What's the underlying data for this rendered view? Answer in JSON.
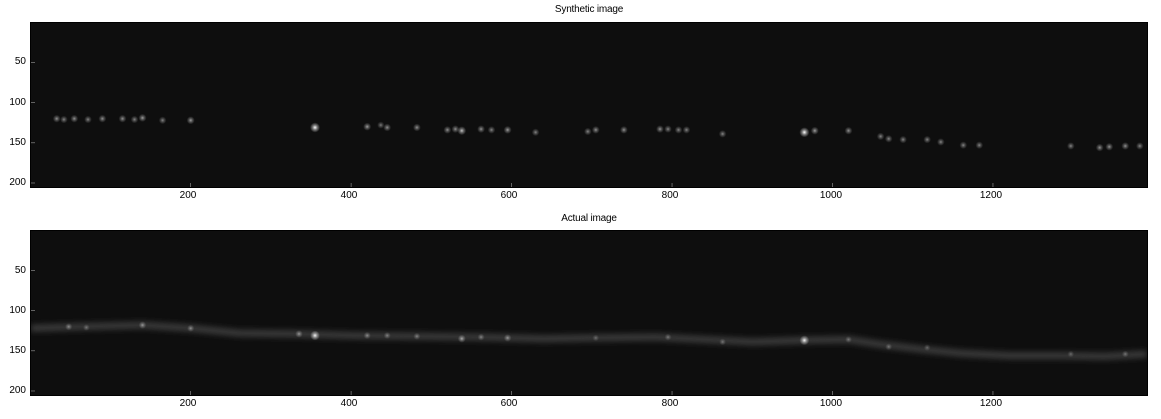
{
  "panels": [
    {
      "title": "Synthetic image",
      "xticks": [
        "200",
        "400",
        "600",
        "800",
        "1000",
        "1200"
      ],
      "yticks": [
        "50",
        "100",
        "150",
        "200"
      ],
      "x_range": [
        1,
        1392
      ],
      "y_range": [
        1,
        205
      ],
      "ridge": false,
      "spots": [
        [
          33,
          120,
          0.55
        ],
        [
          42,
          121,
          0.5
        ],
        [
          55,
          120,
          0.55
        ],
        [
          72,
          121,
          0.5
        ],
        [
          90,
          120,
          0.55
        ],
        [
          115,
          120,
          0.55
        ],
        [
          130,
          121,
          0.5
        ],
        [
          140,
          119,
          0.6
        ],
        [
          165,
          122,
          0.5
        ],
        [
          200,
          122,
          0.6
        ],
        [
          355,
          131,
          1.0
        ],
        [
          420,
          130,
          0.6
        ],
        [
          437,
          128,
          0.45
        ],
        [
          445,
          131,
          0.55
        ],
        [
          482,
          131,
          0.55
        ],
        [
          520,
          134,
          0.55
        ],
        [
          530,
          133,
          0.55
        ],
        [
          538,
          135,
          0.75
        ],
        [
          562,
          133,
          0.55
        ],
        [
          575,
          134,
          0.5
        ],
        [
          595,
          134,
          0.6
        ],
        [
          630,
          137,
          0.5
        ],
        [
          695,
          136,
          0.5
        ],
        [
          705,
          134,
          0.55
        ],
        [
          740,
          134,
          0.55
        ],
        [
          785,
          133,
          0.55
        ],
        [
          795,
          133,
          0.5
        ],
        [
          808,
          134,
          0.5
        ],
        [
          818,
          134,
          0.5
        ],
        [
          863,
          139,
          0.5
        ],
        [
          965,
          137,
          1.0
        ],
        [
          978,
          135,
          0.6
        ],
        [
          1020,
          135,
          0.55
        ],
        [
          1060,
          142,
          0.5
        ],
        [
          1070,
          145,
          0.5
        ],
        [
          1088,
          146,
          0.5
        ],
        [
          1118,
          146,
          0.5
        ],
        [
          1135,
          149,
          0.5
        ],
        [
          1163,
          153,
          0.5
        ],
        [
          1183,
          153,
          0.5
        ],
        [
          1297,
          154,
          0.5
        ],
        [
          1333,
          156,
          0.55
        ],
        [
          1345,
          155,
          0.55
        ],
        [
          1365,
          154,
          0.55
        ],
        [
          1383,
          154,
          0.5
        ]
      ]
    },
    {
      "title": "Actual image",
      "xticks": [
        "200",
        "400",
        "600",
        "800",
        "1000",
        "1200"
      ],
      "yticks": [
        "50",
        "100",
        "150",
        "200"
      ],
      "x_range": [
        1,
        1392
      ],
      "y_range": [
        1,
        205
      ],
      "ridge": true,
      "ridge_path": [
        [
          1,
          122
        ],
        [
          60,
          120
        ],
        [
          140,
          118
        ],
        [
          200,
          122
        ],
        [
          260,
          128
        ],
        [
          330,
          129
        ],
        [
          400,
          131
        ],
        [
          480,
          132
        ],
        [
          560,
          133
        ],
        [
          640,
          135
        ],
        [
          700,
          134
        ],
        [
          780,
          133
        ],
        [
          860,
          137
        ],
        [
          900,
          139
        ],
        [
          965,
          137
        ],
        [
          1020,
          136
        ],
        [
          1060,
          142
        ],
        [
          1110,
          148
        ],
        [
          1160,
          153
        ],
        [
          1220,
          156
        ],
        [
          1280,
          156
        ],
        [
          1340,
          157
        ],
        [
          1392,
          154
        ]
      ],
      "spots": [
        [
          48,
          120,
          0.45
        ],
        [
          70,
          121,
          0.35
        ],
        [
          140,
          118,
          0.5
        ],
        [
          200,
          122,
          0.45
        ],
        [
          335,
          129,
          0.5
        ],
        [
          355,
          131,
          0.95
        ],
        [
          420,
          131,
          0.45
        ],
        [
          445,
          131,
          0.4
        ],
        [
          482,
          132,
          0.4
        ],
        [
          538,
          135,
          0.6
        ],
        [
          562,
          133,
          0.4
        ],
        [
          595,
          134,
          0.5
        ],
        [
          705,
          134,
          0.3
        ],
        [
          795,
          133,
          0.35
        ],
        [
          863,
          139,
          0.35
        ],
        [
          965,
          137,
          0.95
        ],
        [
          1020,
          136,
          0.35
        ],
        [
          1070,
          145,
          0.35
        ],
        [
          1118,
          146,
          0.3
        ],
        [
          1297,
          154,
          0.3
        ],
        [
          1365,
          154,
          0.35
        ]
      ]
    }
  ]
}
